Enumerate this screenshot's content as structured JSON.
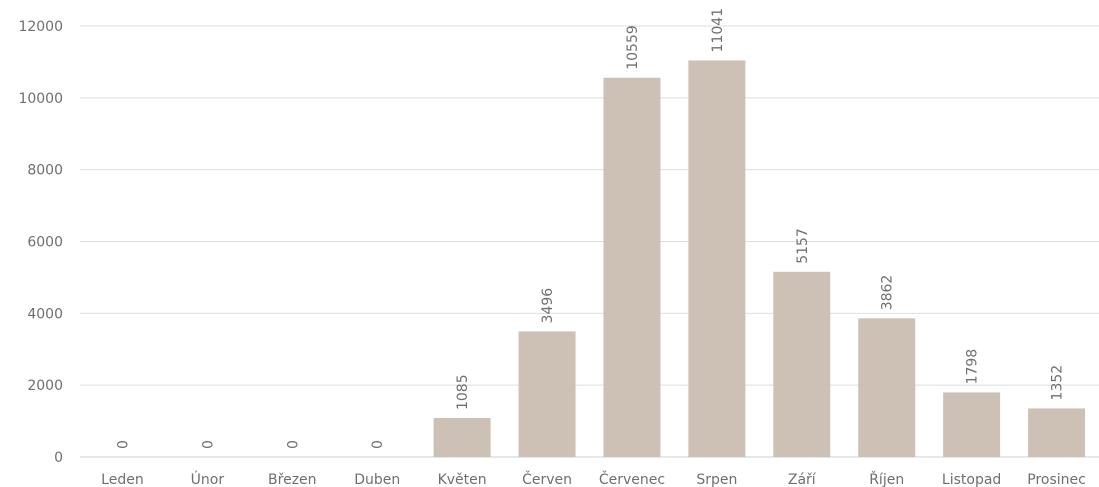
{
  "chart_data": {
    "type": "bar",
    "title": "",
    "xlabel": "",
    "ylabel": "",
    "ylim": [
      0,
      12000
    ],
    "yticks": [
      0,
      2000,
      4000,
      6000,
      8000,
      10000,
      12000
    ],
    "grid": true,
    "legend": "none",
    "categories": [
      "Leden",
      "Únor",
      "Březen",
      "Duben",
      "Květen",
      "Červen",
      "Červenec",
      "Srpen",
      "Září",
      "Říjen",
      "Listopad",
      "Prosinec"
    ],
    "values": [
      0,
      0,
      0,
      0,
      1085,
      3496,
      10559,
      11041,
      5157,
      3862,
      1798,
      1352
    ],
    "bar_color": "#cdc1b6",
    "data_labels_rotated": true
  }
}
